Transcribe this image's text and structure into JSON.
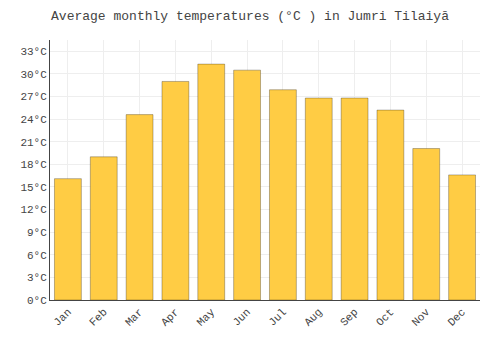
{
  "chart_data": {
    "type": "bar",
    "title": "Average monthly temperatures (°C ) in Jumri Tilaiyā",
    "categories": [
      "Jan",
      "Feb",
      "Mar",
      "Apr",
      "May",
      "Jun",
      "Jul",
      "Aug",
      "Sep",
      "Oct",
      "Nov",
      "Dec"
    ],
    "values": [
      16.1,
      19.0,
      24.6,
      29.0,
      31.3,
      30.5,
      27.9,
      26.8,
      26.8,
      25.2,
      20.1,
      16.6
    ],
    "color": "#FFCC44",
    "ylim": [
      0,
      34.5
    ],
    "yticks": [
      {
        "value": 0,
        "label": "0°C"
      },
      {
        "value": 3,
        "label": "3°C"
      },
      {
        "value": 6,
        "label": "6°C"
      },
      {
        "value": 9,
        "label": "9°C"
      },
      {
        "value": 12,
        "label": "12°C"
      },
      {
        "value": 15,
        "label": "15°C"
      },
      {
        "value": 18,
        "label": "18°C"
      },
      {
        "value": 21,
        "label": "21°C"
      },
      {
        "value": 24,
        "label": "24°C"
      },
      {
        "value": 27,
        "label": "27°C"
      },
      {
        "value": 30,
        "label": "30°C"
      },
      {
        "value": 33,
        "label": "33°C"
      }
    ],
    "grid": true
  }
}
